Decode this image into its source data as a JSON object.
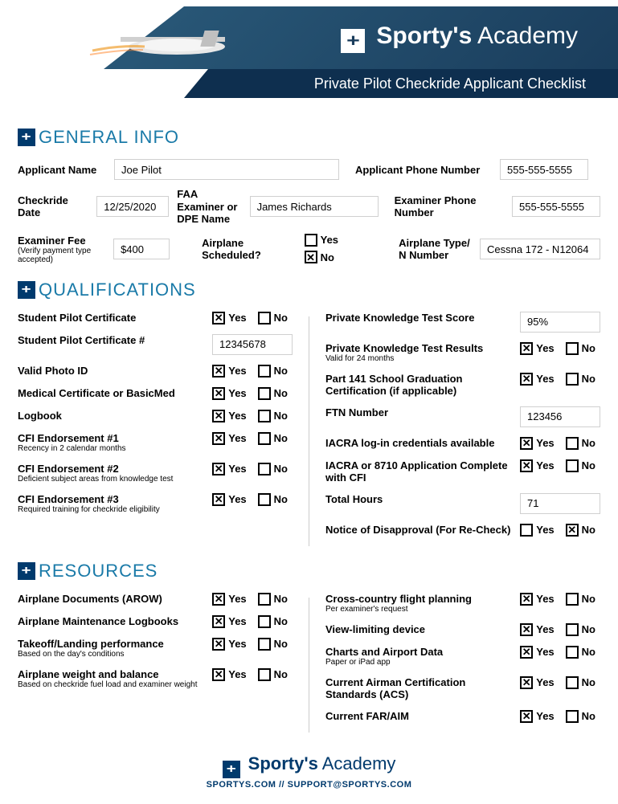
{
  "brand": {
    "bold": "Sporty's",
    "light": "Academy"
  },
  "subtitle": "Private Pilot Checkride Applicant Checklist",
  "colors": {
    "section_heading": "#1a7aa8",
    "header_bg_dark": "#0e2f4f",
    "brand_navy": "#003a6d"
  },
  "sections": {
    "general": "GENERAL INFO",
    "qual": "QUALIFICATIONS",
    "res": "RESOURCES"
  },
  "general": {
    "applicant_name": {
      "label": "Applicant Name",
      "value": "Joe Pilot"
    },
    "applicant_phone": {
      "label": "Applicant Phone Number",
      "value": "555-555-5555"
    },
    "checkride_date": {
      "label": "Checkride Date",
      "value": "12/25/2020"
    },
    "examiner_name": {
      "label": "FAA Examiner or DPE Name",
      "value": "James Richards"
    },
    "examiner_phone": {
      "label": "Examiner Phone Number",
      "value": "555-555-5555"
    },
    "examiner_fee": {
      "label": "Examiner Fee",
      "sub": "(Verify payment type accepted)",
      "value": "$400"
    },
    "airplane_scheduled": {
      "label": "Airplane Scheduled?",
      "yes": false,
      "no": true
    },
    "airplane_type": {
      "label": "Airplane Type/ N Number",
      "value": "Cessna 172 - N12064"
    }
  },
  "yn": {
    "yes": "Yes",
    "no": "No"
  },
  "qual_left": [
    {
      "label": "Student Pilot Certificate",
      "type": "yn",
      "yes": true,
      "no": false
    },
    {
      "label": "Student Pilot Certificate #",
      "type": "text",
      "value": "12345678"
    },
    {
      "label": "Valid Photo ID",
      "type": "yn",
      "yes": true,
      "no": false
    },
    {
      "label": "Medical Certificate or BasicMed",
      "type": "yn",
      "yes": true,
      "no": false
    },
    {
      "label": "Logbook",
      "type": "yn",
      "yes": true,
      "no": false
    },
    {
      "label": "CFI Endorsement #1",
      "sub": "Recency in 2 calendar months",
      "type": "yn",
      "yes": true,
      "no": false
    },
    {
      "label": "CFI Endorsement #2",
      "sub": "Deficient subject areas from knowledge test",
      "type": "yn",
      "yes": true,
      "no": false
    },
    {
      "label": "CFI Endorsement #3",
      "sub": "Required training for checkride eligibility",
      "type": "yn",
      "yes": true,
      "no": false
    }
  ],
  "qual_right": [
    {
      "label": "Private Knowledge Test Score",
      "type": "text",
      "value": "95%"
    },
    {
      "label": "Private Knowledge Test Results",
      "sub": "Valid for 24 months",
      "type": "yn",
      "yes": true,
      "no": false
    },
    {
      "label": "Part 141 School Graduation Certification (if applicable)",
      "type": "yn",
      "yes": true,
      "no": false
    },
    {
      "label": "FTN Number",
      "type": "text",
      "value": "123456"
    },
    {
      "label": "IACRA log-in credentials available",
      "type": "yn",
      "yes": true,
      "no": false
    },
    {
      "label": "IACRA or 8710 Application Complete with CFI",
      "type": "yn",
      "yes": true,
      "no": false
    },
    {
      "label": "Total Hours",
      "type": "text",
      "value": "71"
    },
    {
      "label": "Notice of Disapproval (For Re-Check)",
      "type": "yn",
      "yes": false,
      "no": true
    }
  ],
  "res_left": [
    {
      "label": "Airplane Documents (AROW)",
      "type": "yn",
      "yes": true,
      "no": false
    },
    {
      "label": "Airplane Maintenance Logbooks",
      "type": "yn",
      "yes": true,
      "no": false
    },
    {
      "label": "Takeoff/Landing performance",
      "sub": "Based on the day's conditions",
      "type": "yn",
      "yes": true,
      "no": false
    },
    {
      "label": "Airplane weight and balance",
      "sub": "Based on checkride fuel load and examiner weight",
      "type": "yn",
      "yes": true,
      "no": false
    }
  ],
  "res_right": [
    {
      "label": "Cross-country flight planning",
      "sub": "Per examiner's request",
      "type": "yn",
      "yes": true,
      "no": false
    },
    {
      "label": "View-limiting device",
      "type": "yn",
      "yes": true,
      "no": false
    },
    {
      "label": "Charts and Airport Data",
      "sub": "Paper or iPad app",
      "type": "yn",
      "yes": true,
      "no": false
    },
    {
      "label": "Current Airman Certification Standards (ACS)",
      "type": "yn",
      "yes": true,
      "no": false
    },
    {
      "label": "Current FAR/AIM",
      "type": "yn",
      "yes": true,
      "no": false
    }
  ],
  "footer": {
    "website": "SPORTYS.COM",
    "sep": " // ",
    "email": "SUPPORT@SPORTYS.COM"
  }
}
